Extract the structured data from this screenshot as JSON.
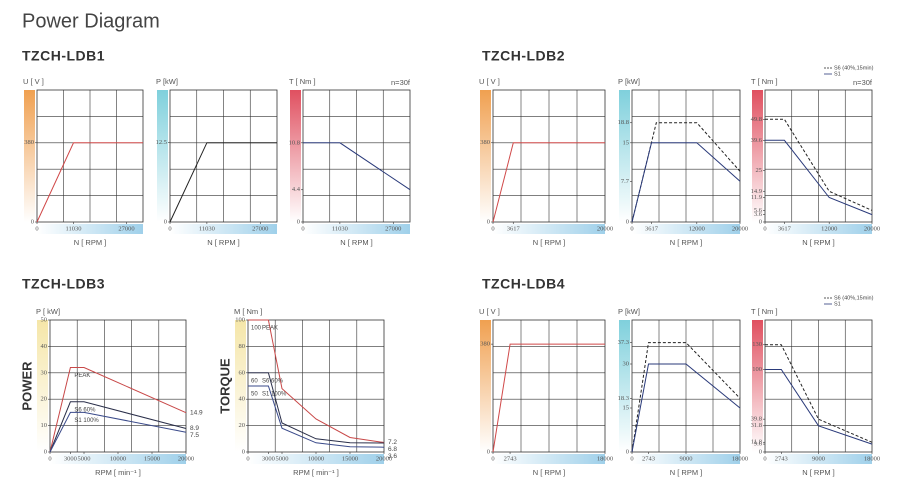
{
  "title": "Power Diagram",
  "sections": [
    "TZCH-LDB1",
    "TZCH-LDB2",
    "TZCH-LDB3",
    "TZCH-LDB4"
  ],
  "chart_data": [
    {
      "type": "line",
      "ylabel": "U [ V ]",
      "xlabel": "N [ RPM ]",
      "accent": "#f0a050",
      "xlim": [
        0,
        32000
      ],
      "ylim": [
        0,
        633
      ],
      "xticks": [
        0,
        11030,
        27000
      ],
      "yticks": [
        0,
        380
      ],
      "series": [
        {
          "color": "#d04848",
          "style": "solid",
          "x": [
            0,
            11030,
            32000
          ],
          "values": [
            0,
            380,
            380
          ]
        }
      ]
    },
    {
      "type": "line",
      "ylabel": "P [kW]",
      "xlabel": "N [ RPM ]",
      "accent": "#7fd0dc",
      "xlim": [
        0,
        32000
      ],
      "ylim": [
        0,
        20.8
      ],
      "xticks": [
        0,
        11030,
        27000
      ],
      "yticks": [
        0,
        12.5
      ],
      "series": [
        {
          "color": "#222222",
          "style": "solid",
          "x": [
            0,
            11030,
            32000
          ],
          "values": [
            0,
            12.5,
            12.5
          ]
        }
      ]
    },
    {
      "type": "line",
      "ylabel": "T [ Nm ]",
      "xlabel": "N [ RPM ]",
      "accent": "#e05060",
      "annotation": "n=30f",
      "xlim": [
        0,
        32000
      ],
      "ylim": [
        0,
        18
      ],
      "xticks": [
        0,
        11030,
        27000
      ],
      "yticks": [
        0,
        4.4,
        10.8
      ],
      "series": [
        {
          "color": "#2a3a7a",
          "style": "solid",
          "x": [
            0,
            11030,
            32000
          ],
          "values": [
            10.8,
            10.8,
            4.4
          ]
        }
      ]
    },
    {
      "type": "line",
      "ylabel": "U [ V ]",
      "xlabel": "N [ RPM ]",
      "accent": "#f0a050",
      "xlim": [
        0,
        20000
      ],
      "ylim": [
        0,
        633
      ],
      "xticks": [
        0,
        3617,
        20000
      ],
      "yticks": [
        0,
        380
      ],
      "series": [
        {
          "color": "#d04848",
          "style": "solid",
          "x": [
            0,
            3617,
            20000
          ],
          "values": [
            0,
            380,
            380
          ]
        }
      ]
    },
    {
      "type": "line",
      "ylabel": "P [kW]",
      "xlabel": "N [ RPM ]",
      "accent": "#7fd0dc",
      "xlim": [
        0,
        20000
      ],
      "ylim": [
        0,
        25
      ],
      "xticks": [
        0,
        3617,
        12000,
        20000
      ],
      "yticks": [
        0,
        7.7,
        15,
        18.8
      ],
      "series": [
        {
          "color": "#222222",
          "style": "dashed",
          "x": [
            0,
            4500,
            12000,
            20000
          ],
          "values": [
            0,
            18.8,
            18.8,
            9.6
          ]
        },
        {
          "color": "#2a3a7a",
          "style": "solid",
          "x": [
            0,
            3617,
            12000,
            20000
          ],
          "values": [
            0,
            15,
            15,
            7.7
          ]
        }
      ]
    },
    {
      "type": "line",
      "ylabel": "T [ Nm ]",
      "xlabel": "N [ RPM ]",
      "accent": "#e05060",
      "annotation": "n=30f",
      "legend": "top-right",
      "xlim": [
        0,
        20000
      ],
      "ylim": [
        0,
        64
      ],
      "xticks": [
        0,
        3617,
        12000,
        20000
      ],
      "yticks": [
        0,
        3.6,
        5.6,
        11.9,
        14.9,
        25,
        39.6,
        49.8
      ],
      "series": [
        {
          "name": "S6 (40%,15min)",
          "color": "#222222",
          "style": "dashed",
          "x": [
            0,
            3617,
            12000,
            20000
          ],
          "values": [
            49.8,
            49.8,
            14.9,
            5.6
          ]
        },
        {
          "name": "S1",
          "color": "#2a3a7a",
          "style": "solid",
          "x": [
            0,
            3617,
            12000,
            20000
          ],
          "values": [
            39.6,
            39.6,
            11.9,
            3.6
          ]
        }
      ]
    },
    {
      "type": "line",
      "ylabel": "P [ kW]",
      "xlabel": "RPM [ min⁻¹ ]",
      "side_label": "POWER",
      "accent": "#f5e6a8",
      "legend": "inline",
      "end_labels": true,
      "xlim": [
        0,
        20000
      ],
      "ylim": [
        0,
        50
      ],
      "xticks": [
        0,
        3000,
        5000,
        10000,
        15000,
        20000
      ],
      "yticks": [
        0,
        10,
        20,
        30,
        40,
        50
      ],
      "series": [
        {
          "name": "PEAK",
          "color": "#c84848",
          "style": "solid",
          "x": [
            0,
            3000,
            5000,
            20000
          ],
          "values": [
            0,
            32,
            32,
            14.9
          ]
        },
        {
          "name": "S6 60%",
          "color": "#2a2f4a",
          "style": "solid",
          "x": [
            0,
            3000,
            5000,
            20000
          ],
          "values": [
            0,
            19,
            19,
            8.9
          ]
        },
        {
          "name": "S1 100%",
          "color": "#3a4a8a",
          "style": "solid",
          "x": [
            0,
            3000,
            5000,
            20000
          ],
          "values": [
            0,
            15,
            15,
            7.5
          ]
        }
      ]
    },
    {
      "type": "line",
      "ylabel": "M [ Nm ]",
      "xlabel": "RPM [ min⁻¹ ]",
      "side_label": "TORQUE",
      "accent": "#f5e6a8",
      "legend": "inline",
      "end_labels": true,
      "start_labels": true,
      "xlim": [
        0,
        20000
      ],
      "ylim": [
        0,
        100
      ],
      "xticks": [
        0,
        3000,
        5000,
        10000,
        15000,
        20000
      ],
      "yticks": [
        0,
        20,
        40,
        60,
        80,
        100
      ],
      "series": [
        {
          "name": "PEAK",
          "color": "#c84848",
          "style": "solid",
          "x": [
            0,
            3000,
            5000,
            10000,
            15000,
            20000
          ],
          "values": [
            100,
            100,
            48,
            25,
            11,
            7.2
          ]
        },
        {
          "name": "S6 60%",
          "color": "#2a2f4a",
          "style": "solid",
          "x": [
            0,
            3000,
            5000,
            10000,
            15000,
            20000
          ],
          "values": [
            60,
            60,
            22,
            10,
            7,
            6.8
          ]
        },
        {
          "name": "S1 100%",
          "color": "#3a4a8a",
          "style": "solid",
          "x": [
            0,
            3000,
            5000,
            10000,
            15000,
            20000
          ],
          "values": [
            50,
            50,
            18,
            7,
            4,
            3.6
          ]
        }
      ]
    },
    {
      "type": "line",
      "ylabel": "U [ V ]",
      "xlabel": "N [ RPM ]",
      "accent": "#f0a050",
      "xlim": [
        0,
        18000
      ],
      "ylim": [
        0,
        465
      ],
      "xticks": [
        0,
        2743,
        18000
      ],
      "yticks": [
        0,
        380
      ],
      "series": [
        {
          "color": "#d04848",
          "style": "solid",
          "x": [
            0,
            2743,
            18000
          ],
          "values": [
            0,
            380,
            380
          ]
        }
      ]
    },
    {
      "type": "line",
      "ylabel": "P [kW]",
      "xlabel": "N [ RPM ]",
      "accent": "#7fd0dc",
      "xlim": [
        0,
        18000
      ],
      "ylim": [
        0,
        45
      ],
      "xticks": [
        0,
        2743,
        9000,
        18000
      ],
      "yticks": [
        0,
        15,
        18.3,
        30,
        37.3
      ],
      "series": [
        {
          "color": "#222222",
          "style": "dashed",
          "x": [
            0,
            2743,
            9000,
            18000
          ],
          "values": [
            0,
            37.3,
            37.3,
            18.3
          ]
        },
        {
          "color": "#2a3a7a",
          "style": "solid",
          "x": [
            0,
            2743,
            9000,
            18000
          ],
          "values": [
            0,
            30,
            30,
            15
          ]
        }
      ]
    },
    {
      "type": "line",
      "ylabel": "T [ Nm ]",
      "xlabel": "N [ RPM ]",
      "accent": "#e05060",
      "legend": "top-right",
      "xlim": [
        0,
        18000
      ],
      "ylim": [
        0,
        160
      ],
      "xticks": [
        0,
        2743,
        9000,
        18000
      ],
      "yticks": [
        0,
        9.6,
        11.8,
        31.8,
        39.8,
        100,
        130
      ],
      "series": [
        {
          "name": "S6 (40%,15min)",
          "color": "#222222",
          "style": "dashed",
          "x": [
            0,
            2743,
            9000,
            18000
          ],
          "values": [
            130,
            130,
            39.8,
            11.8
          ]
        },
        {
          "name": "S1",
          "color": "#2a3a7a",
          "style": "solid",
          "x": [
            0,
            2743,
            9000,
            18000
          ],
          "values": [
            100,
            100,
            31.8,
            9.6
          ]
        }
      ]
    }
  ]
}
